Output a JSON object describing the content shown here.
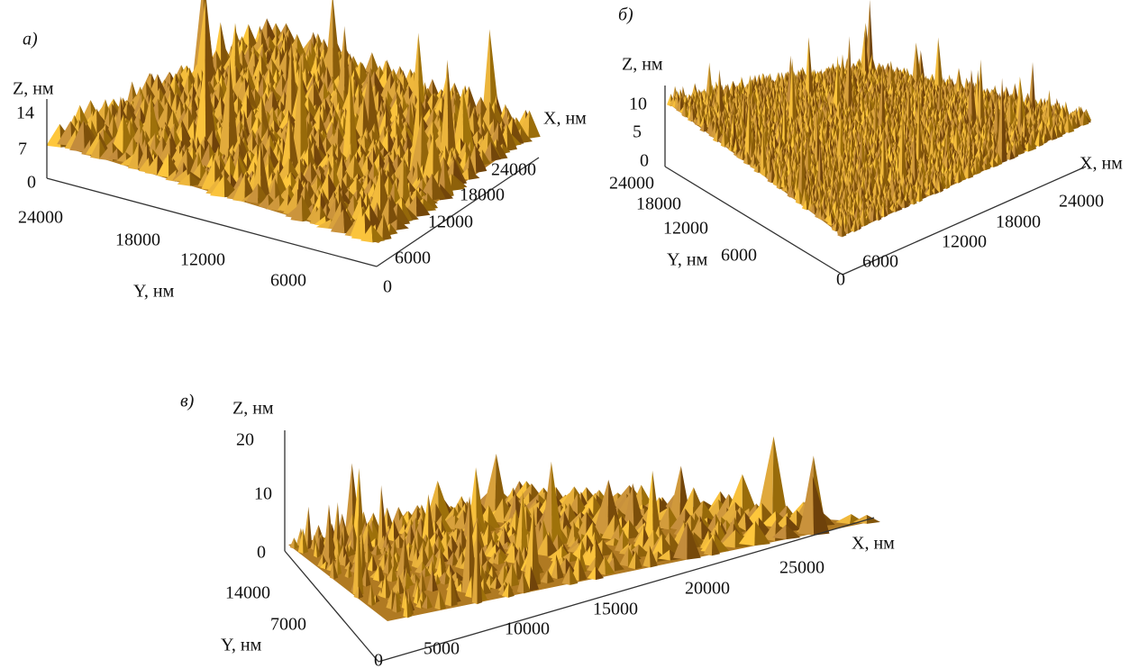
{
  "panels": [
    {
      "label": "а)",
      "z_label": "Z, нм",
      "x_label": "X, нм",
      "y_label": "Y, нм",
      "z_ticks": [
        "14",
        "7",
        "0"
      ],
      "y_ticks": [
        "24000",
        "18000",
        "12000",
        "6000",
        "0"
      ],
      "x_ticks": [
        "6000",
        "12000",
        "18000",
        "24000"
      ]
    },
    {
      "label": "б)",
      "z_label": "Z, нм",
      "x_label": "X, нм",
      "y_label": "Y, нм",
      "z_ticks": [
        "10",
        "5",
        "0"
      ],
      "y_ticks": [
        "24000",
        "18000",
        "12000",
        "6000",
        "0"
      ],
      "x_ticks": [
        "6000",
        "12000",
        "18000",
        "24000"
      ]
    },
    {
      "label": "в)",
      "z_label": "Z, нм",
      "x_label": "X, нм",
      "y_label": "Y, нм",
      "z_ticks": [
        "20",
        "10",
        "0"
      ],
      "y_ticks": [
        "14000",
        "7000",
        "0"
      ],
      "x_ticks": [
        "5000",
        "10000",
        "15000",
        "20000",
        "25000"
      ]
    }
  ]
}
